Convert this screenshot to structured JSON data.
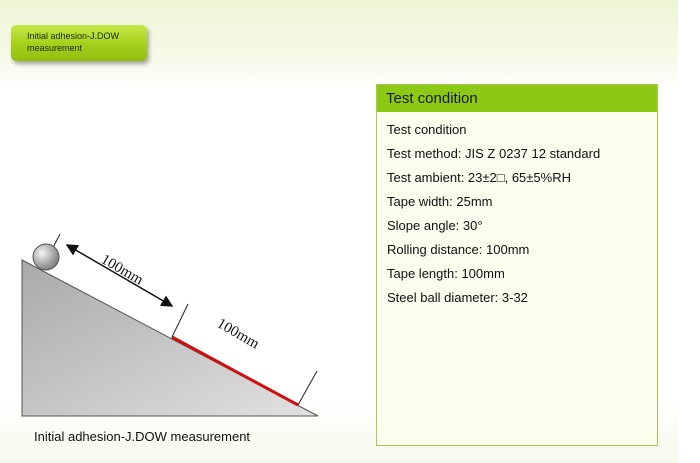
{
  "badge": {
    "line1": "Initial adhesion-J.DOW",
    "line2": "measurement"
  },
  "panel": {
    "title": "Test condition",
    "items": [
      "Test condition",
      "Test method: JIS Z 0237 12 standard",
      "Test ambient: 23±2□, 65±5%RH",
      "Tape width: 25mm",
      "Slope angle: 30°",
      "Rolling distance: 100mm",
      "Tape length: 100mm",
      "Steel ball diameter: 3-32"
    ]
  },
  "diagram": {
    "label_rolling": "100mm",
    "label_tape": "100mm",
    "tape_color": "#d01010",
    "caption": "Initial adhesion-J.DOW measurement"
  },
  "colors": {
    "accent": "#8cc914"
  }
}
